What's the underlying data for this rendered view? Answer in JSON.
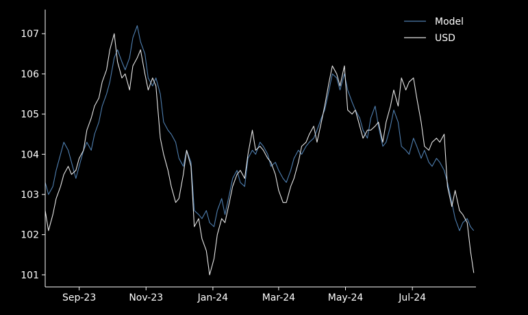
{
  "chart_data": {
    "type": "line",
    "title": "",
    "xlabel": "",
    "ylabel": "",
    "xlim": [
      "2023-08-01",
      "2024-08-28"
    ],
    "ylim": [
      100.7,
      107.6
    ],
    "grid": false,
    "legend_position": "top-right",
    "background": "#000000",
    "x_ticks": [
      {
        "date": "2023-09-01",
        "label": "Sep-23"
      },
      {
        "date": "2023-11-01",
        "label": "Nov-23"
      },
      {
        "date": "2024-01-01",
        "label": "Jan-24"
      },
      {
        "date": "2024-03-01",
        "label": "Mar-24"
      },
      {
        "date": "2024-05-01",
        "label": "May-24"
      },
      {
        "date": "2024-07-01",
        "label": "Jul-24"
      }
    ],
    "y_ticks": [
      101,
      102,
      103,
      104,
      105,
      106,
      107
    ],
    "series": [
      {
        "name": "Model",
        "color": "#4f7fb0",
        "points": [
          [
            "2023-08-01",
            103.3
          ],
          [
            "2023-08-04",
            103.0
          ],
          [
            "2023-08-08",
            103.2
          ],
          [
            "2023-08-11",
            103.6
          ],
          [
            "2023-08-15",
            104.0
          ],
          [
            "2023-08-18",
            104.3
          ],
          [
            "2023-08-22",
            104.1
          ],
          [
            "2023-08-25",
            103.8
          ],
          [
            "2023-08-29",
            103.4
          ],
          [
            "2023-09-01",
            103.7
          ],
          [
            "2023-09-05",
            104.1
          ],
          [
            "2023-09-08",
            104.3
          ],
          [
            "2023-09-12",
            104.1
          ],
          [
            "2023-09-15",
            104.5
          ],
          [
            "2023-09-19",
            104.8
          ],
          [
            "2023-09-22",
            105.2
          ],
          [
            "2023-09-26",
            105.5
          ],
          [
            "2023-09-29",
            105.8
          ],
          [
            "2023-10-03",
            106.4
          ],
          [
            "2023-10-06",
            106.6
          ],
          [
            "2023-10-10",
            106.3
          ],
          [
            "2023-10-13",
            106.1
          ],
          [
            "2023-10-17",
            106.4
          ],
          [
            "2023-10-20",
            106.9
          ],
          [
            "2023-10-24",
            107.2
          ],
          [
            "2023-10-27",
            106.8
          ],
          [
            "2023-10-31",
            106.5
          ],
          [
            "2023-11-03",
            105.9
          ],
          [
            "2023-11-07",
            105.7
          ],
          [
            "2023-11-10",
            105.9
          ],
          [
            "2023-11-14",
            105.5
          ],
          [
            "2023-11-17",
            104.8
          ],
          [
            "2023-11-21",
            104.6
          ],
          [
            "2023-11-24",
            104.5
          ],
          [
            "2023-11-28",
            104.3
          ],
          [
            "2023-12-01",
            103.9
          ],
          [
            "2023-12-05",
            103.7
          ],
          [
            "2023-12-08",
            104.1
          ],
          [
            "2023-12-12",
            103.8
          ],
          [
            "2023-12-15",
            102.6
          ],
          [
            "2023-12-19",
            102.5
          ],
          [
            "2023-12-22",
            102.4
          ],
          [
            "2023-12-26",
            102.6
          ],
          [
            "2023-12-29",
            102.3
          ],
          [
            "2024-01-02",
            102.2
          ],
          [
            "2024-01-05",
            102.6
          ],
          [
            "2024-01-09",
            102.9
          ],
          [
            "2024-01-12",
            102.5
          ],
          [
            "2024-01-16",
            103.0
          ],
          [
            "2024-01-19",
            103.4
          ],
          [
            "2024-01-23",
            103.6
          ],
          [
            "2024-01-26",
            103.3
          ],
          [
            "2024-01-30",
            103.2
          ],
          [
            "2024-02-02",
            103.9
          ],
          [
            "2024-02-06",
            104.1
          ],
          [
            "2024-02-09",
            104.0
          ],
          [
            "2024-02-13",
            104.3
          ],
          [
            "2024-02-16",
            104.2
          ],
          [
            "2024-02-20",
            104.0
          ],
          [
            "2024-02-23",
            103.7
          ],
          [
            "2024-02-27",
            103.8
          ],
          [
            "2024-03-01",
            103.6
          ],
          [
            "2024-03-05",
            103.4
          ],
          [
            "2024-03-08",
            103.3
          ],
          [
            "2024-03-12",
            103.6
          ],
          [
            "2024-03-15",
            103.9
          ],
          [
            "2024-03-19",
            104.1
          ],
          [
            "2024-03-22",
            104.0
          ],
          [
            "2024-03-26",
            104.2
          ],
          [
            "2024-03-29",
            104.3
          ],
          [
            "2024-04-02",
            104.4
          ],
          [
            "2024-04-05",
            104.6
          ],
          [
            "2024-04-09",
            104.9
          ],
          [
            "2024-04-12",
            105.1
          ],
          [
            "2024-04-16",
            105.6
          ],
          [
            "2024-04-19",
            106.0
          ],
          [
            "2024-04-23",
            105.9
          ],
          [
            "2024-04-26",
            105.6
          ],
          [
            "2024-04-30",
            106.0
          ],
          [
            "2024-05-03",
            105.6
          ],
          [
            "2024-05-07",
            105.3
          ],
          [
            "2024-05-10",
            105.1
          ],
          [
            "2024-05-14",
            104.9
          ],
          [
            "2024-05-17",
            104.6
          ],
          [
            "2024-05-21",
            104.4
          ],
          [
            "2024-05-24",
            104.9
          ],
          [
            "2024-05-28",
            105.2
          ],
          [
            "2024-05-31",
            104.7
          ],
          [
            "2024-06-04",
            104.2
          ],
          [
            "2024-06-07",
            104.3
          ],
          [
            "2024-06-11",
            104.7
          ],
          [
            "2024-06-14",
            105.1
          ],
          [
            "2024-06-18",
            104.8
          ],
          [
            "2024-06-21",
            104.2
          ],
          [
            "2024-06-25",
            104.1
          ],
          [
            "2024-06-28",
            104.0
          ],
          [
            "2024-07-02",
            104.4
          ],
          [
            "2024-07-05",
            104.2
          ],
          [
            "2024-07-09",
            103.9
          ],
          [
            "2024-07-12",
            104.1
          ],
          [
            "2024-07-16",
            103.8
          ],
          [
            "2024-07-19",
            103.7
          ],
          [
            "2024-07-23",
            103.9
          ],
          [
            "2024-07-26",
            103.8
          ],
          [
            "2024-07-30",
            103.6
          ],
          [
            "2024-08-02",
            103.3
          ],
          [
            "2024-08-06",
            102.8
          ],
          [
            "2024-08-09",
            102.4
          ],
          [
            "2024-08-13",
            102.1
          ],
          [
            "2024-08-16",
            102.3
          ],
          [
            "2024-08-20",
            102.4
          ],
          [
            "2024-08-23",
            102.2
          ],
          [
            "2024-08-26",
            102.1
          ]
        ]
      },
      {
        "name": "USD",
        "color": "#e8e8e8",
        "points": [
          [
            "2023-08-01",
            102.6
          ],
          [
            "2023-08-04",
            102.1
          ],
          [
            "2023-08-08",
            102.5
          ],
          [
            "2023-08-11",
            102.9
          ],
          [
            "2023-08-15",
            103.2
          ],
          [
            "2023-08-18",
            103.5
          ],
          [
            "2023-08-22",
            103.7
          ],
          [
            "2023-08-25",
            103.5
          ],
          [
            "2023-08-29",
            103.6
          ],
          [
            "2023-09-01",
            103.9
          ],
          [
            "2023-09-05",
            104.1
          ],
          [
            "2023-09-08",
            104.6
          ],
          [
            "2023-09-12",
            104.9
          ],
          [
            "2023-09-15",
            105.2
          ],
          [
            "2023-09-19",
            105.4
          ],
          [
            "2023-09-22",
            105.8
          ],
          [
            "2023-09-26",
            106.1
          ],
          [
            "2023-09-29",
            106.6
          ],
          [
            "2023-10-03",
            107.0
          ],
          [
            "2023-10-06",
            106.3
          ],
          [
            "2023-10-10",
            105.9
          ],
          [
            "2023-10-13",
            106.0
          ],
          [
            "2023-10-17",
            105.6
          ],
          [
            "2023-10-20",
            106.2
          ],
          [
            "2023-10-24",
            106.4
          ],
          [
            "2023-10-27",
            106.6
          ],
          [
            "2023-10-31",
            106.0
          ],
          [
            "2023-11-03",
            105.6
          ],
          [
            "2023-11-07",
            105.9
          ],
          [
            "2023-11-10",
            105.7
          ],
          [
            "2023-11-14",
            104.4
          ],
          [
            "2023-11-17",
            104.0
          ],
          [
            "2023-11-21",
            103.6
          ],
          [
            "2023-11-24",
            103.2
          ],
          [
            "2023-11-28",
            102.8
          ],
          [
            "2023-12-01",
            102.9
          ],
          [
            "2023-12-05",
            103.5
          ],
          [
            "2023-12-08",
            104.1
          ],
          [
            "2023-12-12",
            103.7
          ],
          [
            "2023-12-15",
            102.2
          ],
          [
            "2023-12-19",
            102.4
          ],
          [
            "2023-12-22",
            101.9
          ],
          [
            "2023-12-26",
            101.6
          ],
          [
            "2023-12-29",
            101.0
          ],
          [
            "2024-01-02",
            101.4
          ],
          [
            "2024-01-05",
            102.0
          ],
          [
            "2024-01-09",
            102.4
          ],
          [
            "2024-01-12",
            102.3
          ],
          [
            "2024-01-16",
            102.8
          ],
          [
            "2024-01-19",
            103.2
          ],
          [
            "2024-01-23",
            103.5
          ],
          [
            "2024-01-26",
            103.6
          ],
          [
            "2024-01-30",
            103.4
          ],
          [
            "2024-02-02",
            104.0
          ],
          [
            "2024-02-06",
            104.6
          ],
          [
            "2024-02-09",
            104.1
          ],
          [
            "2024-02-13",
            104.2
          ],
          [
            "2024-02-16",
            104.1
          ],
          [
            "2024-02-20",
            103.9
          ],
          [
            "2024-02-23",
            103.8
          ],
          [
            "2024-02-27",
            103.5
          ],
          [
            "2024-03-01",
            103.1
          ],
          [
            "2024-03-05",
            102.8
          ],
          [
            "2024-03-08",
            102.8
          ],
          [
            "2024-03-12",
            103.2
          ],
          [
            "2024-03-15",
            103.4
          ],
          [
            "2024-03-19",
            103.8
          ],
          [
            "2024-03-22",
            104.2
          ],
          [
            "2024-03-26",
            104.3
          ],
          [
            "2024-03-29",
            104.5
          ],
          [
            "2024-04-02",
            104.7
          ],
          [
            "2024-04-05",
            104.3
          ],
          [
            "2024-04-09",
            104.8
          ],
          [
            "2024-04-12",
            105.2
          ],
          [
            "2024-04-16",
            105.8
          ],
          [
            "2024-04-19",
            106.2
          ],
          [
            "2024-04-23",
            106.0
          ],
          [
            "2024-04-26",
            105.7
          ],
          [
            "2024-04-30",
            106.2
          ],
          [
            "2024-05-03",
            105.1
          ],
          [
            "2024-05-07",
            105.0
          ],
          [
            "2024-05-10",
            105.1
          ],
          [
            "2024-05-14",
            104.7
          ],
          [
            "2024-05-17",
            104.4
          ],
          [
            "2024-05-21",
            104.6
          ],
          [
            "2024-05-24",
            104.6
          ],
          [
            "2024-05-28",
            104.7
          ],
          [
            "2024-05-31",
            104.8
          ],
          [
            "2024-06-04",
            104.3
          ],
          [
            "2024-06-07",
            104.8
          ],
          [
            "2024-06-11",
            105.2
          ],
          [
            "2024-06-14",
            105.6
          ],
          [
            "2024-06-18",
            105.2
          ],
          [
            "2024-06-21",
            105.9
          ],
          [
            "2024-06-25",
            105.6
          ],
          [
            "2024-06-28",
            105.8
          ],
          [
            "2024-07-02",
            105.9
          ],
          [
            "2024-07-05",
            105.4
          ],
          [
            "2024-07-09",
            104.8
          ],
          [
            "2024-07-12",
            104.2
          ],
          [
            "2024-07-16",
            104.1
          ],
          [
            "2024-07-19",
            104.3
          ],
          [
            "2024-07-23",
            104.4
          ],
          [
            "2024-07-26",
            104.3
          ],
          [
            "2024-07-30",
            104.5
          ],
          [
            "2024-08-02",
            103.2
          ],
          [
            "2024-08-06",
            102.7
          ],
          [
            "2024-08-09",
            103.1
          ],
          [
            "2024-08-13",
            102.6
          ],
          [
            "2024-08-16",
            102.5
          ],
          [
            "2024-08-20",
            102.3
          ],
          [
            "2024-08-23",
            101.6
          ],
          [
            "2024-08-26",
            101.05
          ]
        ]
      }
    ]
  }
}
